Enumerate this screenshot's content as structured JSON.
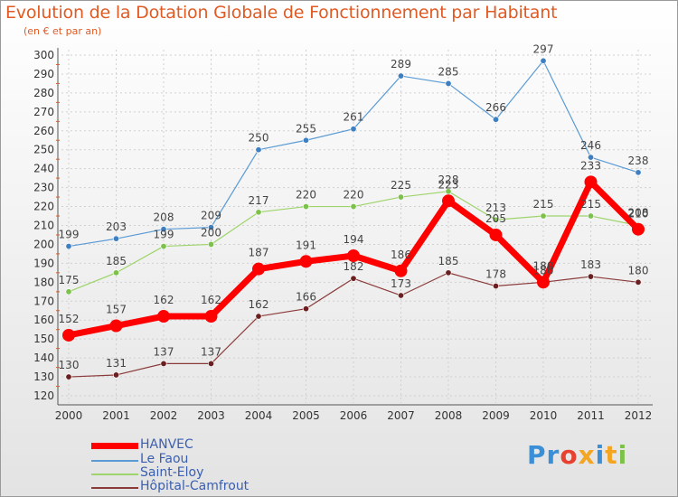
{
  "title": "Evolution de la Dotation Globale de Fonctionnement par Habitant",
  "subtitle": "(en € et par an)",
  "logo_text": "Proxiti",
  "colors": {
    "title": "#e05a24",
    "axis_text": "#333333",
    "grid": "#d0d0d0",
    "legend_text": "#3a5fb0"
  },
  "chart_data": {
    "type": "line",
    "title": "Evolution de la Dotation Globale de Fonctionnement par Habitant",
    "subtitle": "(en € et par an)",
    "x": [
      "2000",
      "2001",
      "2002",
      "2003",
      "2004",
      "2005",
      "2006",
      "2007",
      "2008",
      "2009",
      "2010",
      "2011",
      "2012"
    ],
    "ylim": [
      120,
      300
    ],
    "yticks": [
      120,
      130,
      140,
      150,
      160,
      170,
      180,
      190,
      200,
      210,
      220,
      230,
      240,
      250,
      260,
      270,
      280,
      290,
      300
    ],
    "grid": true,
    "legend_position": "bottom-left",
    "series": [
      {
        "name": "Le Faou",
        "color": "#5b9bd5",
        "marker": "#3e7fc1",
        "width": 1.2,
        "values": [
          199,
          203,
          208,
          209,
          250,
          255,
          261,
          289,
          285,
          266,
          297,
          246,
          238
        ]
      },
      {
        "name": "Saint-Eloy",
        "color": "#9ed46b",
        "marker": "#7cc24a",
        "width": 1.2,
        "values": [
          175,
          185,
          199,
          200,
          217,
          220,
          220,
          225,
          228,
          213,
          215,
          215,
          210
        ]
      },
      {
        "name": "Hôpital-Camfrout",
        "color": "#8b3a3a",
        "marker": "#6a2020",
        "width": 1.2,
        "values": [
          130,
          131,
          137,
          137,
          162,
          166,
          182,
          173,
          185,
          178,
          180,
          183,
          180
        ]
      },
      {
        "name": "HANVEC",
        "color": "#ff0000",
        "marker": "#ff0000",
        "width": 7,
        "values": [
          152,
          157,
          162,
          162,
          187,
          191,
          194,
          186,
          223,
          205,
          180,
          233,
          208
        ]
      }
    ],
    "legend": [
      "HANVEC",
      "Le Faou",
      "Saint-Eloy",
      "Hôpital-Camfrout"
    ]
  }
}
